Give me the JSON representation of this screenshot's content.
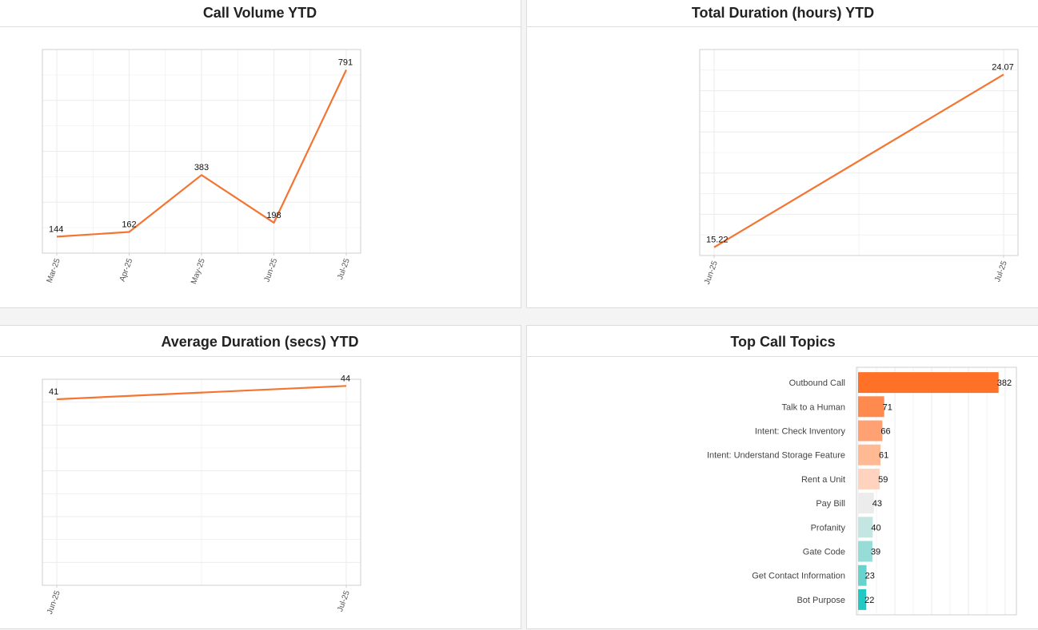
{
  "colors": {
    "line": "#f47432",
    "grid": "#ebebeb",
    "frame": "#cfcfcf",
    "text": "#111111",
    "tick": "#555555"
  },
  "panels": {
    "call_volume": {
      "title": "Call Volume YTD"
    },
    "total_duration": {
      "title": "Total Duration (hours) YTD"
    },
    "avg_duration": {
      "title": "Average Duration (secs) YTD"
    },
    "top_topics": {
      "title": "Top Call Topics"
    }
  },
  "chart_data": [
    {
      "id": "call_volume",
      "type": "line",
      "title": "Call Volume YTD",
      "categories": [
        "Mar-25",
        "Apr-25",
        "May-25",
        "Jun-25",
        "Jul-25"
      ],
      "series": [
        {
          "values": [
            144,
            162,
            383,
            198,
            791
          ]
        }
      ],
      "ylim": [
        80,
        870
      ],
      "grid": true
    },
    {
      "id": "total_duration",
      "type": "line",
      "title": "Total Duration (hours) YTD",
      "categories": [
        "Jun-25",
        "Jul-25"
      ],
      "series": [
        {
          "values": [
            15.22,
            24.07
          ]
        }
      ],
      "ylim": [
        14.8,
        25.35
      ],
      "grid": true
    },
    {
      "id": "avg_duration",
      "type": "line",
      "title": "Average Duration (secs) YTD",
      "categories": [
        "Jun-25",
        "Jul-25"
      ],
      "series": [
        {
          "values": [
            41,
            44
          ]
        }
      ],
      "ylim": [
        -1,
        45.5
      ],
      "grid": true
    },
    {
      "id": "top_topics",
      "type": "bar",
      "orientation": "horizontal",
      "title": "Top Call Topics",
      "categories": [
        "Outbound Call",
        "Talk to a Human",
        "Intent: Check Inventory",
        "Intent: Understand Storage Feature",
        "Rent a Unit",
        "Pay Bill",
        "Profanity",
        "Gate Code",
        "Get Contact Information",
        "Bot Purpose"
      ],
      "values": [
        382,
        71,
        66,
        61,
        59,
        43,
        40,
        39,
        23,
        22
      ],
      "colors": [
        "#ff7127",
        "#ff8a4d",
        "#ffa172",
        "#ffb993",
        "#ffd3bd",
        "#ececec",
        "#c3e6e2",
        "#97dcd6",
        "#67d3cc",
        "#22c9c2"
      ],
      "xlim": [
        0,
        400
      ],
      "grid": true
    }
  ]
}
